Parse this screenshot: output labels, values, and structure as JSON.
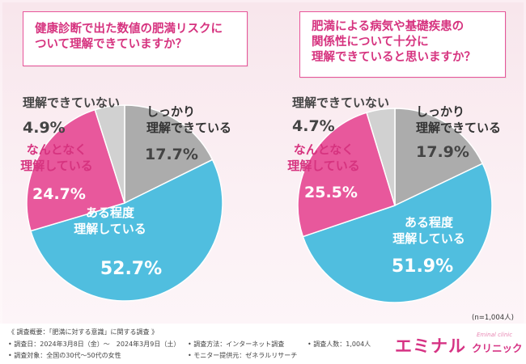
{
  "chart_data": [
    {
      "type": "pie",
      "title": "健康診断で出た数値の肥満リスクについて理解できていますか？",
      "title_lines": [
        "健康診断で出た数値の肥満リスクに",
        "ついて理解できていますか？"
      ],
      "slices": [
        {
          "label": "しっかり理解できている",
          "label_lines": [
            "しっかり",
            "理解できている"
          ],
          "value": 17.7,
          "value_text": "17.7%",
          "color": "#acacac"
        },
        {
          "label": "ある程度理解している",
          "label_lines": [
            "ある程度",
            "理解している"
          ],
          "value": 52.7,
          "value_text": "52.7%",
          "color": "#50bedf"
        },
        {
          "label": "なんとなく理解している",
          "label_lines": [
            "なんとなく",
            "理解している"
          ],
          "value": 24.7,
          "value_text": "24.7%",
          "color": "#e8589c"
        },
        {
          "label": "理解できていない",
          "label_lines": [
            "理解できていない"
          ],
          "value": 4.9,
          "value_text": "4.9%",
          "color": "#d1d1d1"
        }
      ]
    },
    {
      "type": "pie",
      "title": "肥満による病気や基礎疾患の関係性について十分に理解できていると思いますか？",
      "title_lines": [
        "肥満による病気や基礎疾患の",
        "関係性について十分に",
        "理解できていると思いますか？"
      ],
      "slices": [
        {
          "label": "しっかり理解できている",
          "label_lines": [
            "しっかり",
            "理解できている"
          ],
          "value": 17.9,
          "value_text": "17.9%",
          "color": "#acacac"
        },
        {
          "label": "ある程度理解している",
          "label_lines": [
            "ある程度",
            "理解している"
          ],
          "value": 51.9,
          "value_text": "51.9%",
          "color": "#50bedf"
        },
        {
          "label": "なんとなく理解している",
          "label_lines": [
            "なんとなく",
            "理解している"
          ],
          "value": 25.5,
          "value_text": "25.5%",
          "color": "#e8589c"
        },
        {
          "label": "理解できていない",
          "label_lines": [
            "理解できていない"
          ],
          "value": 4.7,
          "value_text": "4.7%",
          "color": "#d1d1d1"
        }
      ]
    }
  ],
  "sample_size": "(n=1,004人)",
  "survey": {
    "overview": "《 調査概要：「肥満に対する意識」に関する調査 》",
    "date": "• 調査日：2024年3月8日（金）～　2024年3月9日（土）",
    "method": "• 調査方法：インターネット調査",
    "count": "• 調査人数：1,004人",
    "target": "• 調査対象：全国の30代～50代の女性",
    "provider": "• モニター提供元：ゼネラルリサーチ"
  },
  "logo": {
    "name": "エミナル",
    "sub": "Eminal clinic",
    "clinic": "クリニック",
    "color": "#d63384"
  }
}
